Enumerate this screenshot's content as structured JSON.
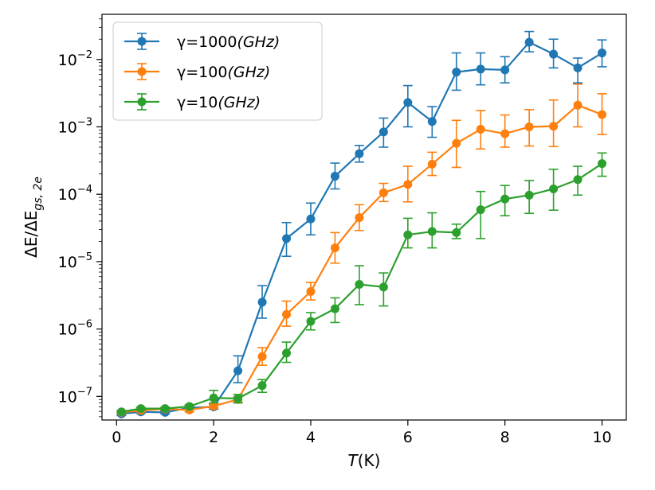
{
  "chart_data": {
    "type": "line",
    "xlabel_prefix": "T",
    "xlabel_unit": "(K)",
    "ylabel": "ΔE/ΔE",
    "ylabel_sub": "gs, 2e",
    "xlim": [
      -0.3,
      10.5
    ],
    "ylim_log10": [
      -7.35,
      -1.33
    ],
    "x_ticks": [
      0,
      2,
      4,
      6,
      8,
      10
    ],
    "y_tick_exponents": [
      -7,
      -6,
      -5,
      -4,
      -3,
      -2
    ],
    "y_tick_base": "10",
    "x": [
      0.1,
      0.5,
      1.0,
      1.5,
      2.0,
      2.5,
      3.0,
      3.5,
      4.0,
      4.5,
      5.0,
      5.5,
      6.0,
      6.5,
      7.0,
      7.5,
      8.0,
      8.5,
      9.0,
      9.5,
      10.0
    ],
    "series": [
      {
        "name": "γ=1000(GHz)",
        "legend_gamma": "γ=1000",
        "legend_unit": "(GHz)",
        "color": "#1f77b4",
        "values": [
          5.5e-08,
          5.9e-08,
          5.8e-08,
          6.8e-08,
          7e-08,
          2.4e-07,
          2.5e-06,
          2.2e-05,
          4.3e-05,
          0.000185,
          0.0004,
          0.00084,
          0.0023,
          0.0012,
          0.0065,
          0.0072,
          0.007,
          0.018,
          0.012,
          0.0075,
          0.0125
        ],
        "err_low": [
          5.2e-08,
          5.6e-08,
          5.5e-08,
          6.4e-08,
          6.5e-08,
          1.6e-07,
          1.45e-06,
          1.2e-05,
          2.5e-05,
          0.00012,
          0.0003,
          0.0005,
          0.001,
          0.0007,
          0.0035,
          0.0042,
          0.0045,
          0.013,
          0.0075,
          0.0045,
          0.0078
        ],
        "err_high": [
          5.8e-08,
          6.2e-08,
          6.1e-08,
          7.2e-08,
          7.6e-08,
          4e-07,
          4.4e-06,
          3.8e-05,
          7.4e-05,
          0.00029,
          0.00053,
          0.00135,
          0.0041,
          0.002,
          0.0125,
          0.0125,
          0.011,
          0.026,
          0.02,
          0.0105,
          0.0195
        ]
      },
      {
        "name": "γ=100(GHz)",
        "legend_gamma": "γ=100",
        "legend_unit": "(GHz)",
        "color": "#ff7f0e",
        "values": [
          5.8e-08,
          6.2e-08,
          6.5e-08,
          6.3e-08,
          7.2e-08,
          9e-08,
          3.9e-07,
          1.65e-06,
          3.6e-06,
          1.6e-05,
          4.5e-05,
          0.000105,
          0.00014,
          0.00028,
          0.00057,
          0.00092,
          0.00079,
          0.001,
          0.00102,
          0.0021,
          0.00152
        ],
        "err_low": [
          5.5e-08,
          5.9e-08,
          6.2e-08,
          5.9e-08,
          6.7e-08,
          8.2e-08,
          2.9e-07,
          1.1e-06,
          2.7e-06,
          9.5e-06,
          2.9e-05,
          7.8e-05,
          7.7e-05,
          0.00019,
          0.00025,
          0.00047,
          0.0005,
          0.00052,
          0.00051,
          0.001,
          0.00077
        ],
        "err_high": [
          6.1e-08,
          6.5e-08,
          6.8e-08,
          6.7e-08,
          7.8e-08,
          9.9e-08,
          5.3e-07,
          2.6e-06,
          4.9e-06,
          2.7e-05,
          7e-05,
          0.000145,
          0.00026,
          0.00042,
          0.00125,
          0.00175,
          0.0015,
          0.0018,
          0.0025,
          0.0043,
          0.0031
        ]
      },
      {
        "name": "γ=10(GHz)",
        "legend_gamma": "γ=10",
        "legend_unit": "(GHz)",
        "color": "#2ca02c",
        "values": [
          5.9e-08,
          6.6e-08,
          6.6e-08,
          7.1e-08,
          9.5e-08,
          9.3e-08,
          1.45e-07,
          4.4e-07,
          1.3e-06,
          2e-06,
          4.6e-06,
          4.2e-06,
          2.5e-05,
          2.8e-05,
          2.7e-05,
          5.9e-05,
          8.5e-05,
          9.7e-05,
          0.00012,
          0.000165,
          0.000285
        ],
        "err_low": [
          5.6e-08,
          6.3e-08,
          6.3e-08,
          6.7e-08,
          8e-08,
          8e-08,
          1.15e-07,
          3.2e-07,
          9.7e-07,
          1.25e-06,
          2.3e-06,
          2.2e-06,
          1.6e-05,
          1.6e-05,
          2.2e-05,
          2.2e-05,
          4.8e-05,
          5.2e-05,
          5.8e-05,
          9.7e-05,
          0.000185
        ],
        "err_high": [
          6.2e-08,
          6.9e-08,
          6.9e-08,
          7.5e-08,
          1.23e-07,
          1.07e-07,
          1.78e-07,
          6.4e-07,
          1.75e-06,
          2.9e-06,
          8.7e-06,
          6.8e-06,
          4.4e-05,
          5.3e-05,
          3.6e-05,
          0.00011,
          0.000135,
          0.00016,
          0.000235,
          0.00026,
          0.00041
        ]
      }
    ],
    "legend_position": "top-left",
    "grid": false
  }
}
